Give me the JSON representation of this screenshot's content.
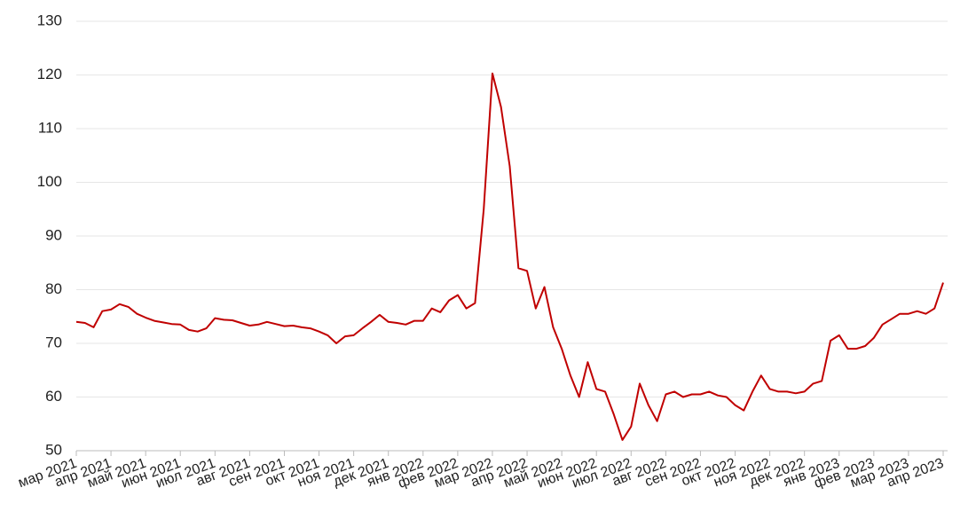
{
  "chart_data": {
    "type": "line",
    "categories": [
      "мар 2021",
      null,
      null,
      null,
      "апр 2021",
      null,
      null,
      null,
      "май 2021",
      null,
      null,
      null,
      "июн 2021",
      null,
      null,
      null,
      "июл 2021",
      null,
      null,
      null,
      "авг 2021",
      null,
      null,
      null,
      "сен 2021",
      null,
      null,
      null,
      "окт 2021",
      null,
      null,
      null,
      "ноя 2021",
      null,
      null,
      null,
      "дек 2021",
      null,
      null,
      null,
      "янв 2022",
      null,
      null,
      null,
      "фев 2022",
      null,
      null,
      null,
      "мар 2022",
      null,
      null,
      null,
      "апр 2022",
      null,
      null,
      null,
      "май 2022",
      null,
      null,
      null,
      "июн 2022",
      null,
      null,
      null,
      "июл 2022",
      null,
      null,
      null,
      "авг 2022",
      null,
      null,
      null,
      "сен 2022",
      null,
      null,
      null,
      "окт 2022",
      null,
      null,
      null,
      "ноя 2022",
      null,
      null,
      null,
      "дек 2022",
      null,
      null,
      null,
      "янв 2023",
      null,
      null,
      null,
      "фев 2023",
      null,
      null,
      null,
      "мар 2023",
      null,
      null,
      null,
      "апр 2023"
    ],
    "series": [
      {
        "color": "#c00000",
        "values": [
          74.0,
          73.8,
          73.0,
          76.0,
          76.3,
          77.3,
          76.8,
          75.5,
          74.8,
          74.2,
          73.9,
          73.6,
          73.5,
          72.5,
          72.2,
          72.8,
          74.7,
          74.4,
          74.3,
          73.8,
          73.3,
          73.5,
          74.0,
          73.6,
          73.2,
          73.3,
          73.0,
          72.8,
          72.2,
          71.5,
          70.0,
          71.3,
          71.5,
          72.8,
          74.0,
          75.3,
          74.0,
          73.8,
          73.5,
          74.2,
          74.2,
          76.5,
          75.8,
          78.0,
          79.0,
          76.5,
          77.5,
          95.0,
          120.3,
          114.0,
          103.0,
          84.0,
          83.5,
          76.5,
          80.5,
          73.0,
          69.0,
          64.0,
          60.0,
          66.5,
          61.5,
          61.0,
          56.8,
          52.0,
          54.5,
          62.5,
          58.5,
          55.5,
          60.5,
          61.0,
          60.0,
          60.5,
          60.5,
          61.0,
          60.3,
          60.0,
          58.5,
          57.5,
          61.0,
          64.0,
          61.5,
          61.0,
          61.0,
          60.7,
          61.0,
          62.5,
          63.0,
          70.5,
          71.5,
          69.0,
          69.0,
          69.5,
          71.0,
          73.5,
          74.5,
          75.5,
          75.5,
          76.0,
          75.5,
          76.5,
          81.3
        ]
      }
    ],
    "ylim": [
      50,
      130
    ],
    "yticks": [
      50,
      60,
      70,
      80,
      90,
      100,
      110,
      120,
      130
    ],
    "grid": true
  }
}
